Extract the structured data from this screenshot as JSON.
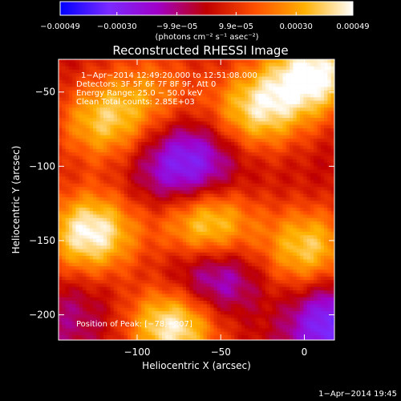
{
  "chart_data": {
    "type": "heatmap",
    "title": "Reconstructed RHESSI Image",
    "xlabel": "Heliocentric X (arcsec)",
    "ylabel": "Heliocentric Y (arcsec)",
    "xlim": [
      -147,
      18
    ],
    "ylim": [
      -217,
      -28
    ],
    "x_ticks": [
      -100,
      -50,
      0
    ],
    "x_tick_labels": [
      "−100",
      "−50",
      "0"
    ],
    "y_ticks": [
      -50,
      -100,
      -150,
      -200
    ],
    "y_tick_labels": [
      "−50",
      "−100",
      "−150",
      "−200"
    ],
    "colorbar": {
      "range": [
        -0.00049,
        0.00049
      ],
      "ticks": [
        -0.00049,
        -0.0003,
        -9.9e-05,
        9.9e-05,
        0.0003,
        0.00049
      ],
      "tick_labels": [
        "−0.00049",
        "−0.00030",
        "−9.9e−05",
        "9.9e−05",
        "0.00030",
        "0.00049"
      ],
      "unit_label": "(photons cm⁻² s⁻¹ asec⁻²)",
      "colors": [
        "#0000ff",
        "#7a2aff",
        "#a000c8",
        "#c00000",
        "#ff5000",
        "#ffb000",
        "#ffffff"
      ]
    },
    "annotations": [
      "1−Apr−2014 12:49:20.000 to 12:51:08.000",
      "Detectors: 3F 5F 6F 7F 8F 9F, Att 0",
      "Energy Range: 25.0 − 50.0 keV",
      "Clean    Total counts: 2.85E+03",
      "Position of Peak: [−78,−207]"
    ],
    "timestamp": "1−Apr−2014 19:45",
    "sources": [
      {
        "x": -120,
        "y": -70,
        "value": 0.00035
      },
      {
        "x": -28,
        "y": -62,
        "value": 0.0004
      },
      {
        "x": 6,
        "y": -38,
        "value": 0.00049
      },
      {
        "x": -90,
        "y": -48,
        "value": 0.0002
      },
      {
        "x": -128,
        "y": -145,
        "value": 0.00049
      },
      {
        "x": -58,
        "y": -140,
        "value": 0.00045
      },
      {
        "x": 2,
        "y": -155,
        "value": 0.00038
      },
      {
        "x": -78,
        "y": -207,
        "value": 0.00049
      },
      {
        "x": -8,
        "y": -200,
        "value": 0.00012
      },
      {
        "x": -70,
        "y": -100,
        "value": -0.00035
      },
      {
        "x": -55,
        "y": -175,
        "value": -0.0003
      },
      {
        "x": 12,
        "y": -205,
        "value": -0.0004
      },
      {
        "x": -140,
        "y": -200,
        "value": -0.0001
      }
    ]
  }
}
